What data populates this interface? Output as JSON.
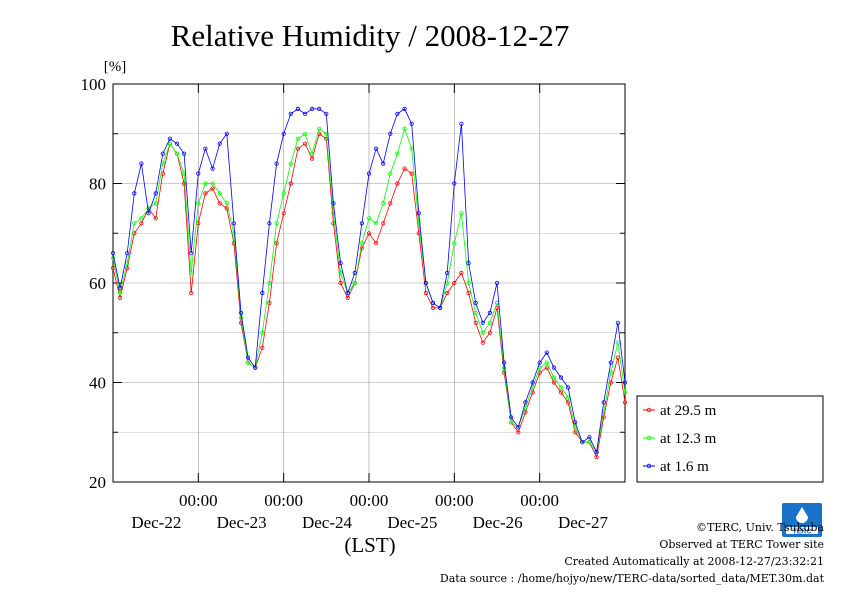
{
  "chart_data": {
    "type": "line",
    "title": "Relative Humidity / 2008-12-27",
    "ylabel": "[%]",
    "xlabel": "(LST)",
    "ylim": [
      20,
      100
    ],
    "yticks": [
      20,
      40,
      60,
      80,
      100
    ],
    "xlim": [
      0,
      144
    ],
    "xticks": [
      {
        "x": 24,
        "time": "00:00",
        "date": "Dec-22"
      },
      {
        "x": 48,
        "time": "00:00",
        "date": "Dec-23"
      },
      {
        "x": 72,
        "time": "00:00",
        "date": "Dec-24"
      },
      {
        "x": 96,
        "time": "00:00",
        "date": "Dec-25"
      },
      {
        "x": 120,
        "time": "00:00",
        "date": "Dec-26"
      },
      {
        "x": 144,
        "time": "",
        "date": "Dec-27"
      }
    ],
    "grid": true,
    "legend_position": "lower-right outside",
    "series": [
      {
        "name": "at 29.5 m",
        "color": "#ff0000",
        "x": [
          0,
          2,
          4,
          6,
          8,
          10,
          12,
          14,
          16,
          18,
          20,
          22,
          24,
          26,
          28,
          30,
          32,
          34,
          36,
          38,
          40,
          42,
          44,
          46,
          48,
          50,
          52,
          54,
          56,
          58,
          60,
          62,
          64,
          66,
          68,
          70,
          72,
          74,
          76,
          78,
          80,
          82,
          84,
          86,
          88,
          90,
          92,
          94,
          96,
          98,
          100,
          102,
          104,
          106,
          108,
          110,
          112,
          114,
          116,
          118,
          120,
          122,
          124,
          126,
          128,
          130,
          132,
          134,
          136,
          138,
          140,
          142,
          144
        ],
        "y": [
          63,
          57,
          63,
          70,
          72,
          75,
          73,
          82,
          88,
          86,
          80,
          58,
          72,
          78,
          79,
          76,
          75,
          68,
          52,
          44,
          43,
          47,
          56,
          68,
          74,
          80,
          87,
          88,
          85,
          90,
          89,
          72,
          60,
          57,
          60,
          67,
          70,
          68,
          72,
          76,
          80,
          83,
          82,
          70,
          58,
          55,
          55,
          58,
          60,
          62,
          58,
          52,
          48,
          50,
          55,
          42,
          32,
          30,
          34,
          38,
          42,
          43,
          40,
          38,
          36,
          30,
          28,
          28,
          25,
          33,
          40,
          45,
          36
        ]
      },
      {
        "name": "at 12.3 m",
        "color": "#00ff00",
        "x": [
          0,
          2,
          4,
          6,
          8,
          10,
          12,
          14,
          16,
          18,
          20,
          22,
          24,
          26,
          28,
          30,
          32,
          34,
          36,
          38,
          40,
          42,
          44,
          46,
          48,
          50,
          52,
          54,
          56,
          58,
          60,
          62,
          64,
          66,
          68,
          70,
          72,
          74,
          76,
          78,
          80,
          82,
          84,
          86,
          88,
          90,
          92,
          94,
          96,
          98,
          100,
          102,
          104,
          106,
          108,
          110,
          112,
          114,
          116,
          118,
          120,
          122,
          124,
          126,
          128,
          130,
          132,
          134,
          136,
          138,
          140,
          142,
          144
        ],
        "y": [
          65,
          58,
          64,
          72,
          73,
          75,
          76,
          84,
          88,
          86,
          82,
          62,
          76,
          80,
          80,
          78,
          76,
          70,
          53,
          44,
          43,
          50,
          60,
          72,
          78,
          84,
          89,
          90,
          86,
          91,
          90,
          74,
          62,
          58,
          60,
          68,
          73,
          72,
          76,
          82,
          86,
          91,
          87,
          72,
          60,
          56,
          55,
          60,
          68,
          74,
          60,
          54,
          50,
          52,
          56,
          43,
          32,
          31,
          35,
          39,
          43,
          44,
          41,
          39,
          37,
          31,
          28,
          28,
          26,
          34,
          42,
          48,
          38
        ]
      },
      {
        "name": "at 1.6 m",
        "color": "#0000ff",
        "x": [
          0,
          2,
          4,
          6,
          8,
          10,
          12,
          14,
          16,
          18,
          20,
          22,
          24,
          26,
          28,
          30,
          32,
          34,
          36,
          38,
          40,
          42,
          44,
          46,
          48,
          50,
          52,
          54,
          56,
          58,
          60,
          62,
          64,
          66,
          68,
          70,
          72,
          74,
          76,
          78,
          80,
          82,
          84,
          86,
          88,
          90,
          92,
          94,
          96,
          98,
          100,
          102,
          104,
          106,
          108,
          110,
          112,
          114,
          116,
          118,
          120,
          122,
          124,
          126,
          128,
          130,
          132,
          134,
          136,
          138,
          140,
          142,
          144
        ],
        "y": [
          66,
          59,
          66,
          78,
          84,
          74,
          78,
          86,
          89,
          88,
          86,
          66,
          82,
          87,
          83,
          88,
          90,
          72,
          54,
          45,
          43,
          58,
          72,
          84,
          90,
          94,
          95,
          94,
          95,
          95,
          94,
          76,
          64,
          58,
          62,
          72,
          82,
          87,
          84,
          90,
          94,
          95,
          92,
          74,
          60,
          56,
          55,
          62,
          80,
          92,
          64,
          56,
          52,
          54,
          60,
          44,
          33,
          31,
          36,
          40,
          44,
          46,
          43,
          41,
          39,
          32,
          28,
          29,
          26,
          36,
          44,
          52,
          40
        ]
      }
    ]
  },
  "credits": {
    "copyright": "©TERC, Univ. Tsukuba",
    "observed": "Observed at TERC Tower site",
    "created": "Created Automatically at 2008-12-27/23:32:21",
    "source": "Data source : /home/hojyo/new/TERC-data/sorted_data/MET.30m.dat"
  },
  "logo": {
    "text": "TERC",
    "color": "#1a73c8"
  }
}
